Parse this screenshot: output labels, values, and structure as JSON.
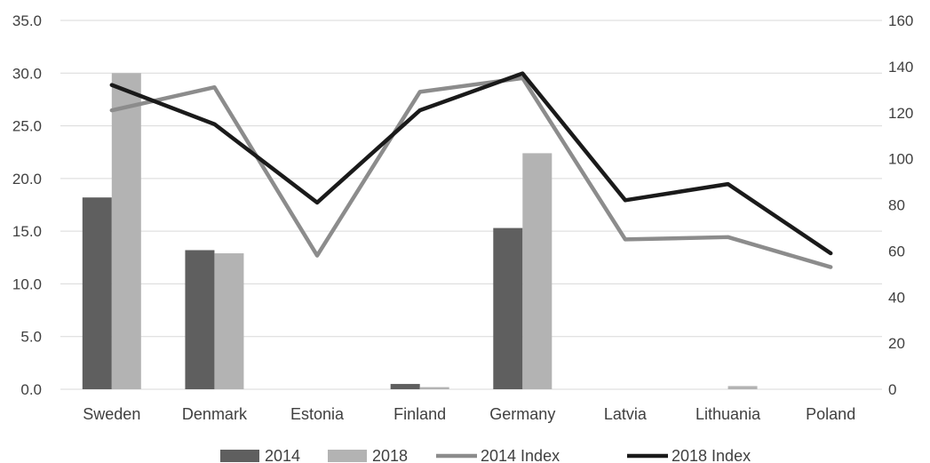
{
  "chart_data": {
    "type": "bar",
    "categories": [
      "Sweden",
      "Denmark",
      "Estonia",
      "Finland",
      "Germany",
      "Latvia",
      "Lithuania",
      "Poland"
    ],
    "series": [
      {
        "name": "2014",
        "kind": "bar",
        "axis": "left",
        "color": "#5f5f5f",
        "values": [
          18.2,
          13.2,
          0,
          0.5,
          15.3,
          0,
          0,
          0
        ]
      },
      {
        "name": "2018",
        "kind": "bar",
        "axis": "left",
        "color": "#b3b3b3",
        "values": [
          30.0,
          12.9,
          0,
          0.2,
          22.4,
          0,
          0.3,
          0
        ]
      },
      {
        "name": "2014 Index",
        "kind": "line",
        "axis": "right",
        "color": "#8c8c8c",
        "values": [
          121,
          131,
          58,
          129,
          135,
          65,
          66,
          53
        ]
      },
      {
        "name": "2018 Index",
        "kind": "line",
        "axis": "right",
        "color": "#1a1a1a",
        "values": [
          132,
          115,
          81,
          121,
          137,
          82,
          89,
          59
        ]
      }
    ],
    "y_left": {
      "min": 0,
      "max": 35,
      "step": 5,
      "ticks": [
        "0.0",
        "5.0",
        "10.0",
        "15.0",
        "20.0",
        "25.0",
        "30.0",
        "35.0"
      ]
    },
    "y_right": {
      "min": 0,
      "max": 160,
      "step": 20,
      "ticks": [
        "0",
        "20",
        "40",
        "60",
        "80",
        "100",
        "120",
        "140",
        "160"
      ]
    },
    "grid": true,
    "legend_position": "bottom"
  }
}
